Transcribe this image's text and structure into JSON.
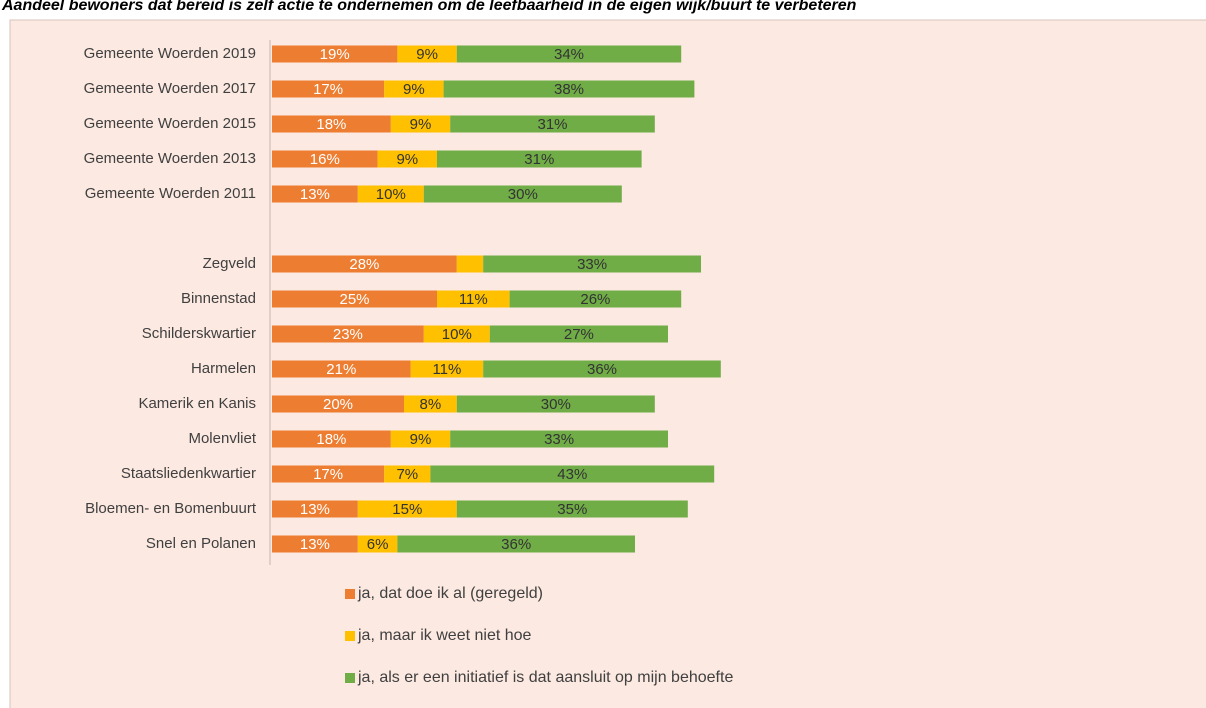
{
  "chart_data": {
    "type": "stacked_barh",
    "title": "Aandeel bewoners dat bereid is zelf actie te ondernemen om de leefbaarheid in de eigen wijk/buurt te verbeteren",
    "categories": [
      "Gemeente Woerden 2019",
      "Gemeente Woerden 2017",
      "Gemeente Woerden 2015",
      "Gemeente Woerden 2013",
      "Gemeente Woerden 2011",
      null,
      "Zegveld",
      "Binnenstad",
      "Schilderskwartier",
      "Harmelen",
      "Kamerik en Kanis",
      "Molenvliet",
      "Staatsliedenkwartier",
      "Bloemen- en Bomenbuurt",
      "Snel en Polanen"
    ],
    "series": [
      {
        "name": "ja, dat doe ik al (geregeld)",
        "color": "#ed7d31",
        "label_color": "#ffffff",
        "values": [
          19,
          17,
          18,
          16,
          13,
          null,
          28,
          25,
          23,
          21,
          20,
          18,
          17,
          13,
          13
        ],
        "value_labels": [
          "19%",
          "17%",
          "18%",
          "16%",
          "13%",
          null,
          "28%",
          "25%",
          "23%",
          "21%",
          "20%",
          "18%",
          "17%",
          "13%",
          "13%"
        ]
      },
      {
        "name": "ja, maar ik weet niet hoe",
        "color": "#ffc000",
        "label_color": "#333333",
        "values": [
          9,
          9,
          9,
          9,
          10,
          null,
          4,
          11,
          10,
          11,
          8,
          9,
          7,
          15,
          6
        ],
        "value_labels": [
          "9%",
          "9%",
          "9%",
          "9%",
          "10%",
          null,
          null,
          "11%",
          "10%",
          "11%",
          "8%",
          "9%",
          "7%",
          "15%",
          "6%"
        ]
      },
      {
        "name": "ja, als er een initiatief is dat aansluit op mijn behoefte",
        "color": "#70ad47",
        "label_color": "#333333",
        "values": [
          34,
          38,
          31,
          31,
          30,
          null,
          33,
          26,
          27,
          36,
          30,
          33,
          43,
          35,
          36
        ],
        "value_labels": [
          "34%",
          "38%",
          "31%",
          "31%",
          "30%",
          null,
          "33%",
          "26%",
          "27%",
          "36%",
          "30%",
          "33%",
          "43%",
          "35%",
          "36%"
        ]
      }
    ],
    "xlim": [
      0,
      100
    ],
    "legend": "bottom"
  }
}
